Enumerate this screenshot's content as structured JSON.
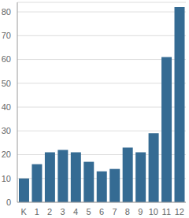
{
  "chart_data": {
    "type": "bar",
    "categories": [
      "K",
      "1",
      "2",
      "3",
      "4",
      "5",
      "6",
      "7",
      "8",
      "9",
      "10",
      "11",
      "12"
    ],
    "values": [
      10,
      16,
      21,
      22,
      21,
      17,
      13,
      14,
      23,
      21,
      29,
      61,
      82
    ],
    "color": "#356b93",
    "ylim": [
      0,
      84
    ],
    "yticks": [
      0,
      10,
      20,
      30,
      40,
      50,
      60,
      70,
      80
    ],
    "grid": true
  }
}
